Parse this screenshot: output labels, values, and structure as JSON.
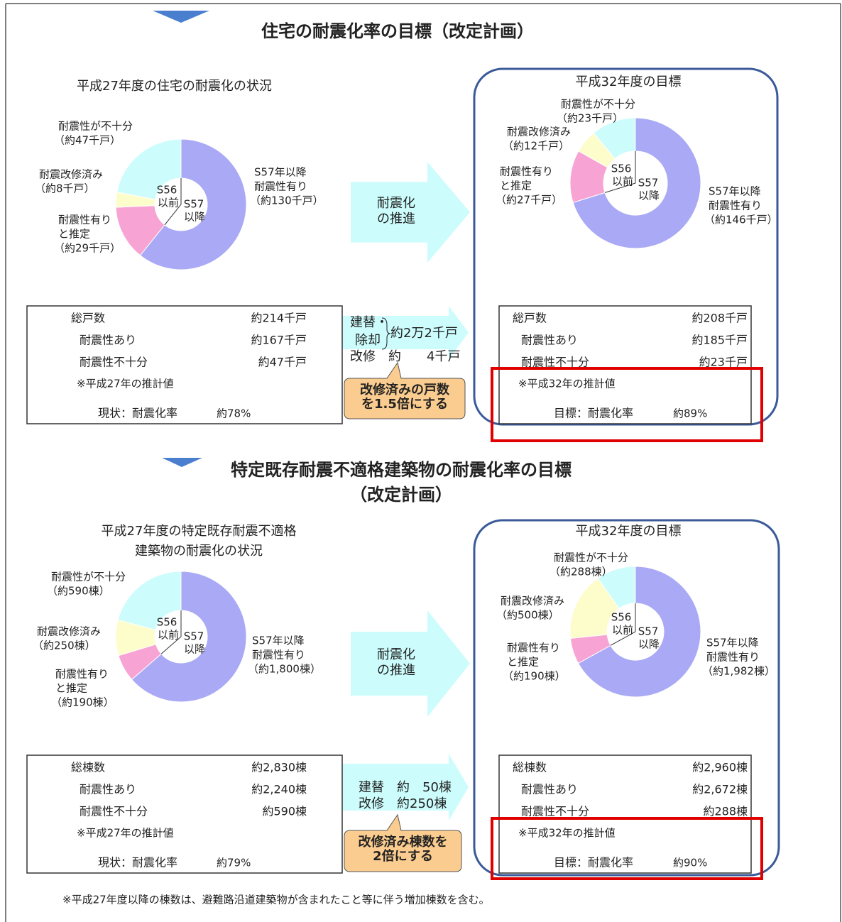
{
  "sections": [
    {
      "title": [
        "住宅の耐震化率の目標（改定計画）"
      ],
      "current": {
        "heading": [
          "平成27年度の住宅の耐震化の状況"
        ],
        "donut": {
          "segments": [
            {
              "name": [
                "S57年以降",
                "耐震性有り"
              ],
              "label": "（約130千戸）",
              "value": 130,
              "color": "#a9a9f5"
            },
            {
              "name": [
                "耐震性有り",
                "と推定"
              ],
              "label": "（約29千戸）",
              "value": 29,
              "color": "#f7a3d3"
            },
            {
              "name": [
                "耐震改修済み"
              ],
              "label": "（約8千戸）",
              "value": 8,
              "color": "#fdfccb"
            },
            {
              "name": [
                "耐震性が不十分"
              ],
              "label": "（約47千戸）",
              "value": 47,
              "color": "#ccfcfc"
            }
          ],
          "inner": [
            "S56",
            "以前",
            "S57",
            "以降"
          ]
        },
        "table": {
          "rows": [
            [
              "総戸数",
              "約214千戸"
            ],
            [
              "耐震性あり",
              "約167千戸"
            ],
            [
              "耐震性不十分",
              "約47千戸"
            ]
          ],
          "note": "※平成27年の推計値",
          "result": [
            "現状：耐震化率",
            "約78%"
          ]
        }
      },
      "arrow": [
        "耐震化",
        "の推進"
      ],
      "change": {
        "lines": [
          "建替・",
          "除却",
          "約2万2千戸",
          "改修　約　　4千戸"
        ],
        "callout": [
          "改修済みの戸数",
          "を1.5倍にする"
        ]
      },
      "target": {
        "heading": [
          "平成32年度の目標"
        ],
        "donut": {
          "segments": [
            {
              "name": [
                "S57年以降",
                "耐震性有り"
              ],
              "label": "（約146千戸）",
              "value": 146,
              "color": "#a9a9f5"
            },
            {
              "name": [
                "耐震性有り",
                "と推定"
              ],
              "label": "（約27千戸）",
              "value": 27,
              "color": "#f7a3d3"
            },
            {
              "name": [
                "耐震改修済み"
              ],
              "label": "（約12千戸）",
              "value": 12,
              "color": "#fdfccb"
            },
            {
              "name": [
                "耐震性が不十分"
              ],
              "label": "（約23千戸）",
              "value": 23,
              "color": "#ccfcfc"
            }
          ],
          "inner": [
            "S56",
            "以前",
            "S57",
            "以降"
          ]
        },
        "table": {
          "rows": [
            [
              "総戸数",
              "約208千戸"
            ],
            [
              "耐震性あり",
              "約185千戸"
            ],
            [
              "耐震性不十分",
              "約23千戸"
            ]
          ],
          "note": "※平成32年の推計値",
          "result": [
            "目標：耐震化率",
            "約89%"
          ]
        }
      }
    },
    {
      "title": [
        "特定既存耐震不適格建築物の耐震化率の目標",
        "（改定計画）"
      ],
      "current": {
        "heading": [
          "平成27年度の特定既存耐震不適格",
          "建築物の耐震化の状況"
        ],
        "donut": {
          "segments": [
            {
              "name": [
                "S57年以降",
                "耐震性有り"
              ],
              "label": "（約1,800棟）",
              "value": 1800,
              "color": "#a9a9f5"
            },
            {
              "name": [
                "耐震性有り",
                "と推定"
              ],
              "label": "（約190棟）",
              "value": 190,
              "color": "#f7a3d3"
            },
            {
              "name": [
                "耐震改修済み"
              ],
              "label": "（約250棟）",
              "value": 250,
              "color": "#fdfccb"
            },
            {
              "name": [
                "耐震性が不十分"
              ],
              "label": "（約590棟）",
              "value": 590,
              "color": "#ccfcfc"
            }
          ],
          "inner": [
            "S56",
            "以前",
            "S57",
            "以降"
          ]
        },
        "table": {
          "rows": [
            [
              "総棟数",
              "約2,830棟"
            ],
            [
              "耐震性あり",
              "約2,240棟"
            ],
            [
              "耐震性不十分",
              "約590棟"
            ]
          ],
          "note": "※平成27年の推計値",
          "result": [
            "現状：耐震化率",
            "約79%"
          ]
        }
      },
      "arrow": [
        "耐震化",
        "の推進"
      ],
      "change": {
        "lines": [
          "建替　約　50棟",
          "改修　約250棟"
        ],
        "callout": [
          "改修済み棟数を",
          "2倍にする"
        ]
      },
      "target": {
        "heading": [
          "平成32年度の目標"
        ],
        "donut": {
          "segments": [
            {
              "name": [
                "S57年以降",
                "耐震性有り"
              ],
              "label": "（約1,982棟）",
              "value": 1982,
              "color": "#a9a9f5"
            },
            {
              "name": [
                "耐震性有り",
                "と推定"
              ],
              "label": "（約190棟）",
              "value": 190,
              "color": "#f7a3d3"
            },
            {
              "name": [
                "耐震改修済み"
              ],
              "label": "（約500棟）",
              "value": 500,
              "color": "#fdfccb"
            },
            {
              "name": [
                "耐震性が不十分"
              ],
              "label": "（約288棟）",
              "value": 288,
              "color": "#ccfcfc"
            }
          ],
          "inner": [
            "S56",
            "以前",
            "S57",
            "以降"
          ]
        },
        "table": {
          "rows": [
            [
              "総棟数",
              "約2,960棟"
            ],
            [
              "耐震性あり",
              "約2,672棟"
            ],
            [
              "耐震性不十分",
              "約288棟"
            ]
          ],
          "note": "※平成32年の推計値",
          "result": [
            "目標：耐震化率",
            "約90%"
          ]
        }
      }
    }
  ],
  "footnote": "※平成27年度以降の棟数は、避難路沿道建築物が含まれたこと等に伴う増加棟数を含む。"
}
